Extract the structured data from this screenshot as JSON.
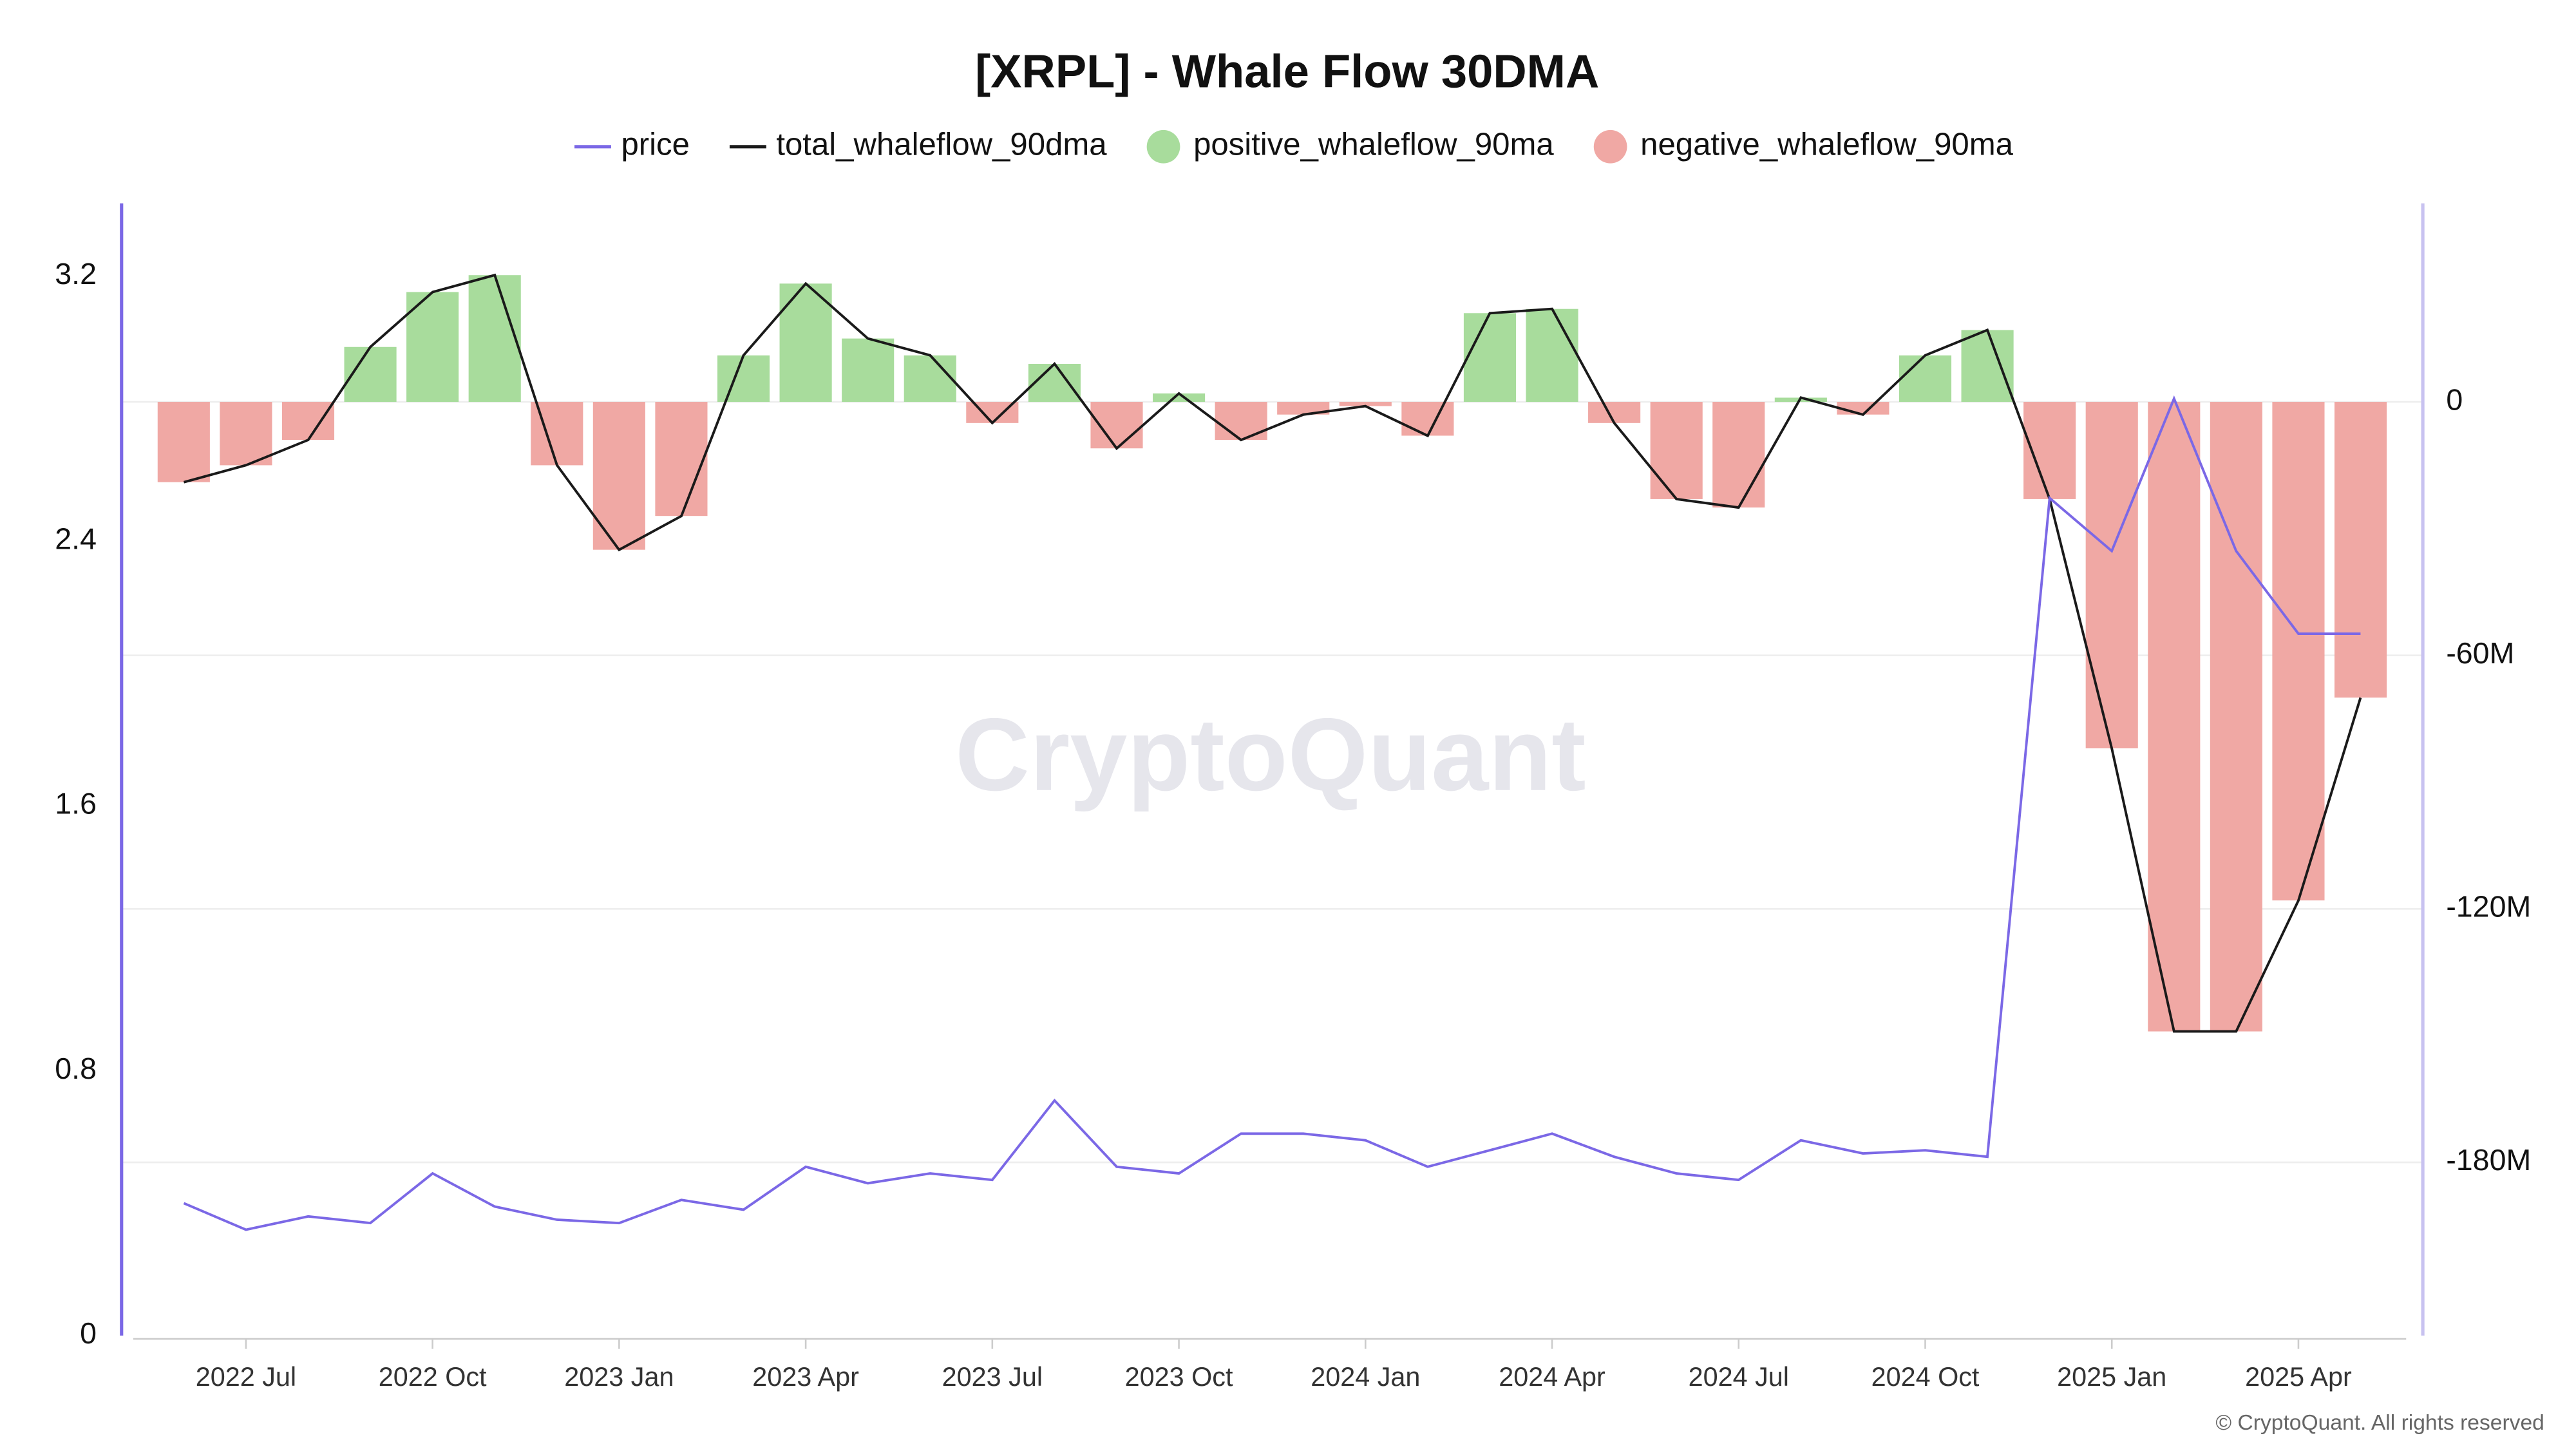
{
  "chart_data": {
    "type": "line",
    "title": "[XRPL] - Whale Flow 30DMA",
    "watermark": "CryptoQuant",
    "copyright": "© CryptoQuant. All rights reserved",
    "x": [
      "2022-06",
      "2022-07",
      "2022-08",
      "2022-09",
      "2022-10",
      "2022-11",
      "2022-12",
      "2023-01",
      "2023-02",
      "2023-03",
      "2023-04",
      "2023-05",
      "2023-06",
      "2023-07",
      "2023-08",
      "2023-09",
      "2023-10",
      "2023-11",
      "2023-12",
      "2024-01",
      "2024-02",
      "2024-03",
      "2024-04",
      "2024-05",
      "2024-06",
      "2024-07",
      "2024-08",
      "2024-09",
      "2024-10",
      "2024-11",
      "2024-12",
      "2025-01",
      "2025-02",
      "2025-03",
      "2025-04",
      "2025-05"
    ],
    "xlim": [
      "2022-05",
      "2025-06"
    ],
    "xticks": [
      {
        "value": "2022-07",
        "label": "2022 Jul"
      },
      {
        "value": "2022-10",
        "label": "2022 Oct"
      },
      {
        "value": "2023-01",
        "label": "2023 Jan"
      },
      {
        "value": "2023-04",
        "label": "2023 Apr"
      },
      {
        "value": "2023-07",
        "label": "2023 Jul"
      },
      {
        "value": "2023-10",
        "label": "2023 Oct"
      },
      {
        "value": "2024-01",
        "label": "2024 Jan"
      },
      {
        "value": "2024-04",
        "label": "2024 Apr"
      },
      {
        "value": "2024-07",
        "label": "2024 Jul"
      },
      {
        "value": "2024-10",
        "label": "2024 Oct"
      },
      {
        "value": "2025-01",
        "label": "2025 Jan"
      },
      {
        "value": "2025-04",
        "label": "2025 Apr"
      }
    ],
    "ylim": [
      0,
      3.42
    ],
    "yticks": [
      0,
      0.8,
      1.6,
      2.4,
      3.2
    ],
    "y2lim": [
      -221,
      47
    ],
    "y2ticks": [
      0,
      {
        "value": -60,
        "label": "-60M"
      },
      {
        "value": -120,
        "label": "-120M"
      },
      {
        "value": -180,
        "label": "-180M"
      }
    ],
    "grid": true,
    "legend": "top",
    "series": [
      {
        "name": "price",
        "color": "#7b68e6",
        "kind": "line",
        "values": [
          0.4,
          0.32,
          0.36,
          0.34,
          0.49,
          0.39,
          0.35,
          0.34,
          0.41,
          0.38,
          0.51,
          0.46,
          0.49,
          0.47,
          0.71,
          0.51,
          0.49,
          0.61,
          0.61,
          0.59,
          0.51,
          0.56,
          0.61,
          0.54,
          0.49,
          0.47,
          0.59,
          0.55,
          0.56,
          0.54,
          2.53,
          2.37,
          2.83,
          2.37,
          2.12,
          2.12
        ]
      },
      {
        "name": "total_whaleflow_90dma",
        "color": "#1a1a1a",
        "kind": "line",
        "axis": "y2",
        "values": [
          -19,
          -15,
          -9,
          13,
          26,
          30,
          -15,
          -35,
          -27,
          11,
          28,
          15,
          11,
          -5,
          9,
          -11,
          2,
          -9,
          -3,
          -1,
          -8,
          21,
          22,
          -5,
          -23,
          -25,
          1,
          -3,
          11,
          17,
          -23,
          -82,
          -149,
          -149,
          -118,
          -70
        ]
      },
      {
        "name": "positive_whaleflow_90ma",
        "color": "#a8dc9c",
        "kind": "bar",
        "axis": "y2",
        "values": [
          0,
          0,
          0,
          13,
          26,
          30,
          0,
          0,
          0,
          11,
          28,
          15,
          11,
          0,
          9,
          0,
          2,
          0,
          0,
          0,
          0,
          21,
          22,
          0,
          0,
          0,
          1,
          0,
          11,
          17,
          0,
          0,
          0,
          0,
          0,
          0
        ]
      },
      {
        "name": "negative_whaleflow_90ma",
        "color": "#f0a8a4",
        "kind": "bar",
        "axis": "y2",
        "values": [
          -19,
          -15,
          -9,
          0,
          0,
          0,
          -15,
          -35,
          -27,
          0,
          0,
          0,
          0,
          -5,
          0,
          -11,
          0,
          -9,
          -3,
          -1,
          -8,
          0,
          0,
          -5,
          -23,
          -25,
          0,
          -3,
          0,
          0,
          -23,
          -82,
          -149,
          -149,
          -118,
          -70
        ]
      }
    ]
  }
}
